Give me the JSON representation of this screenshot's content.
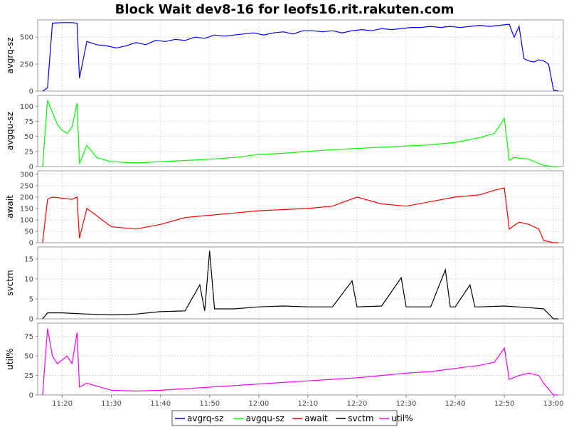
{
  "chart_data": {
    "type": "line",
    "title": "Block Wait dev8-16 for leofs16.rit.rakuten.com",
    "x_ticks": [
      "11:20",
      "11:30",
      "11:40",
      "11:50",
      "12:00",
      "12:10",
      "12:20",
      "12:30",
      "12:40",
      "12:50",
      "13:00"
    ],
    "x_range": [
      "11:15",
      "13:02"
    ],
    "grid": true,
    "legend_position": "bottom",
    "legend": [
      "avgrq-sz",
      "avgqu-sz",
      "await",
      "svctm",
      "util%"
    ],
    "panels": [
      {
        "name": "avgrq-sz",
        "ylabel": "avgrq-sz",
        "color": "#0000ff",
        "ylim": [
          0,
          660
        ],
        "yticks": [
          0,
          250,
          500
        ],
        "x": [
          "11:16",
          "11:17",
          "11:18",
          "11:20",
          "11:22",
          "11:23",
          "11:23:30",
          "11:25",
          "11:27",
          "11:29",
          "11:31",
          "11:33",
          "11:35",
          "11:37",
          "11:39",
          "11:41",
          "11:43",
          "11:45",
          "11:47",
          "11:49",
          "11:51",
          "11:53",
          "11:55",
          "11:57",
          "11:59",
          "12:01",
          "12:03",
          "12:05",
          "12:07",
          "12:09",
          "12:11",
          "12:13",
          "12:15",
          "12:17",
          "12:19",
          "12:21",
          "12:23",
          "12:25",
          "12:27",
          "12:29",
          "12:31",
          "12:33",
          "12:35",
          "12:37",
          "12:39",
          "12:41",
          "12:43",
          "12:45",
          "12:47",
          "12:49",
          "12:51",
          "12:52",
          "12:53",
          "12:54",
          "12:55",
          "12:56",
          "12:57",
          "12:58",
          "12:59",
          "13:00",
          "13:01"
        ],
        "values": [
          0,
          30,
          630,
          635,
          635,
          630,
          120,
          460,
          430,
          420,
          400,
          420,
          450,
          430,
          470,
          460,
          480,
          470,
          500,
          490,
          520,
          510,
          520,
          530,
          540,
          520,
          540,
          550,
          530,
          560,
          560,
          550,
          560,
          540,
          560,
          570,
          560,
          580,
          570,
          580,
          590,
          590,
          600,
          590,
          600,
          590,
          600,
          610,
          600,
          610,
          620,
          500,
          600,
          300,
          280,
          270,
          290,
          280,
          250,
          10,
          0
        ]
      },
      {
        "name": "avgqu-sz",
        "ylabel": "avgqu-sz",
        "color": "#00ff00",
        "ylim": [
          0,
          118
        ],
        "yticks": [
          0,
          25,
          50,
          75,
          100
        ],
        "x": [
          "11:16",
          "11:17",
          "11:18",
          "11:19",
          "11:20",
          "11:21",
          "11:22",
          "11:23",
          "11:23:30",
          "11:25",
          "11:27",
          "11:30",
          "11:35",
          "11:40",
          "11:45",
          "11:50",
          "11:55",
          "12:00",
          "12:05",
          "12:10",
          "12:15",
          "12:20",
          "12:25",
          "12:30",
          "12:35",
          "12:40",
          "12:45",
          "12:48",
          "12:50",
          "12:51",
          "12:52",
          "12:55",
          "12:58",
          "13:00",
          "13:01"
        ],
        "values": [
          0,
          110,
          90,
          70,
          60,
          55,
          65,
          105,
          5,
          35,
          15,
          8,
          6,
          8,
          10,
          12,
          15,
          20,
          22,
          25,
          28,
          30,
          32,
          34,
          36,
          40,
          48,
          55,
          80,
          10,
          15,
          12,
          2,
          0,
          0
        ]
      },
      {
        "name": "await",
        "ylabel": "await",
        "color": "#ff0000",
        "ylim": [
          0,
          315
        ],
        "yticks": [
          0,
          50,
          100,
          150,
          200,
          250,
          300
        ],
        "x": [
          "11:16",
          "11:17",
          "11:18",
          "11:20",
          "11:22",
          "11:23",
          "11:23:30",
          "11:25",
          "11:30",
          "11:35",
          "11:40",
          "11:45",
          "11:50",
          "11:55",
          "12:00",
          "12:05",
          "12:10",
          "12:15",
          "12:20",
          "12:25",
          "12:30",
          "12:35",
          "12:40",
          "12:45",
          "12:48",
          "12:50",
          "12:51",
          "12:53",
          "12:55",
          "12:57",
          "12:58",
          "13:00",
          "13:01"
        ],
        "values": [
          0,
          190,
          200,
          195,
          190,
          200,
          20,
          150,
          70,
          60,
          80,
          110,
          120,
          130,
          140,
          145,
          150,
          160,
          200,
          170,
          160,
          180,
          200,
          210,
          230,
          240,
          60,
          90,
          80,
          60,
          10,
          0,
          0
        ]
      },
      {
        "name": "svctm",
        "ylabel": "svctm",
        "color": "#000000",
        "ylim": [
          0,
          18
        ],
        "yticks": [
          0,
          5,
          10,
          15
        ],
        "x": [
          "11:16",
          "11:17",
          "11:20",
          "11:25",
          "11:30",
          "11:35",
          "11:40",
          "11:45",
          "11:48",
          "11:49",
          "11:50",
          "11:51",
          "11:55",
          "12:00",
          "12:05",
          "12:10",
          "12:15",
          "12:19",
          "12:20",
          "12:25",
          "12:29",
          "12:30",
          "12:35",
          "12:38",
          "12:39",
          "12:40",
          "12:43",
          "12:44",
          "12:45",
          "12:50",
          "12:55",
          "12:58",
          "13:00",
          "13:01"
        ],
        "values": [
          0,
          1.5,
          1.5,
          1.2,
          1.0,
          1.2,
          1.8,
          2.0,
          8.5,
          2.0,
          17.0,
          2.5,
          2.5,
          3.0,
          3.2,
          3.0,
          3.0,
          9.5,
          3.0,
          3.2,
          10.3,
          3.0,
          3.0,
          12.3,
          3.0,
          3.0,
          8.5,
          3.0,
          3.0,
          3.2,
          2.8,
          2.5,
          0,
          0
        ]
      },
      {
        "name": "util%",
        "ylabel": "util%",
        "color": "#ff00ff",
        "ylim": [
          0,
          92
        ],
        "yticks": [
          0,
          25,
          50,
          75
        ],
        "x": [
          "11:16",
          "11:17",
          "11:18",
          "11:19",
          "11:20",
          "11:21",
          "11:22",
          "11:23",
          "11:23:30",
          "11:25",
          "11:30",
          "11:35",
          "11:40",
          "11:45",
          "11:50",
          "11:55",
          "12:00",
          "12:05",
          "12:10",
          "12:15",
          "12:20",
          "12:25",
          "12:30",
          "12:35",
          "12:40",
          "12:45",
          "12:48",
          "12:50",
          "12:51",
          "12:53",
          "12:55",
          "12:57",
          "12:58",
          "13:00",
          "13:01"
        ],
        "values": [
          0,
          85,
          50,
          40,
          45,
          50,
          40,
          80,
          10,
          15,
          6,
          5,
          6,
          8,
          10,
          12,
          14,
          16,
          18,
          20,
          22,
          25,
          28,
          30,
          34,
          38,
          42,
          60,
          20,
          25,
          28,
          25,
          15,
          0,
          0
        ]
      }
    ]
  }
}
